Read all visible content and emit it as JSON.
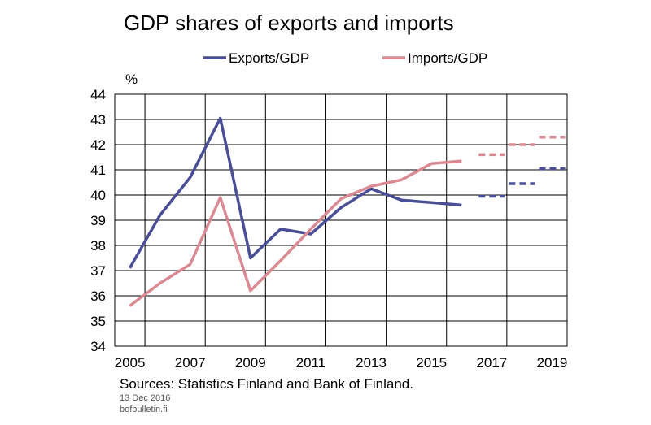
{
  "chart_data": {
    "type": "line",
    "title": "GDP shares of exports and imports",
    "unit": "%",
    "x_tick_labels": [
      "2005",
      "2007",
      "2009",
      "2011",
      "2013",
      "2015",
      "2017",
      "2019"
    ],
    "xlim": [
      2005,
      2020
    ],
    "ylim": [
      34,
      44
    ],
    "y_ticks": [
      34,
      35,
      36,
      37,
      38,
      39,
      40,
      41,
      42,
      43,
      44
    ],
    "grid": true,
    "legend": "top",
    "series": [
      {
        "name": "Exports/GDP",
        "color": "#4a4e96",
        "values": [
          {
            "year": 2005,
            "value": 37.1
          },
          {
            "year": 2006,
            "value": 39.2
          },
          {
            "year": 2007,
            "value": 40.7
          },
          {
            "year": 2008,
            "value": 43.05
          },
          {
            "year": 2009,
            "value": 37.5
          },
          {
            "year": 2010,
            "value": 38.65
          },
          {
            "year": 2011,
            "value": 38.45
          },
          {
            "year": 2012,
            "value": 39.5
          },
          {
            "year": 2013,
            "value": 40.25
          },
          {
            "year": 2014,
            "value": 39.8
          },
          {
            "year": 2015,
            "value": 39.7
          },
          {
            "year": 2016,
            "value": 39.6
          }
        ],
        "forecast": [
          {
            "year": 2017,
            "value": 39.95
          },
          {
            "year": 2018,
            "value": 40.45
          },
          {
            "year": 2019,
            "value": 41.05
          }
        ]
      },
      {
        "name": "Imports/GDP",
        "color": "#d98a93",
        "values": [
          {
            "year": 2005,
            "value": 35.6
          },
          {
            "year": 2006,
            "value": 36.5
          },
          {
            "year": 2007,
            "value": 37.25
          },
          {
            "year": 2008,
            "value": 39.9
          },
          {
            "year": 2009,
            "value": 36.2
          },
          {
            "year": 2010,
            "value": 37.4
          },
          {
            "year": 2011,
            "value": 38.65
          },
          {
            "year": 2012,
            "value": 39.85
          },
          {
            "year": 2013,
            "value": 40.35
          },
          {
            "year": 2014,
            "value": 40.6
          },
          {
            "year": 2015,
            "value": 41.25
          },
          {
            "year": 2016,
            "value": 41.35
          }
        ],
        "forecast": [
          {
            "year": 2017,
            "value": 41.6
          },
          {
            "year": 2018,
            "value": 42.0
          },
          {
            "year": 2019,
            "value": 42.3
          }
        ]
      }
    ]
  },
  "footer": {
    "sources": "Sources: Statistics Finland and Bank of Finland.",
    "date": "13 Dec 2016",
    "site": "bofbulletin.fi"
  }
}
